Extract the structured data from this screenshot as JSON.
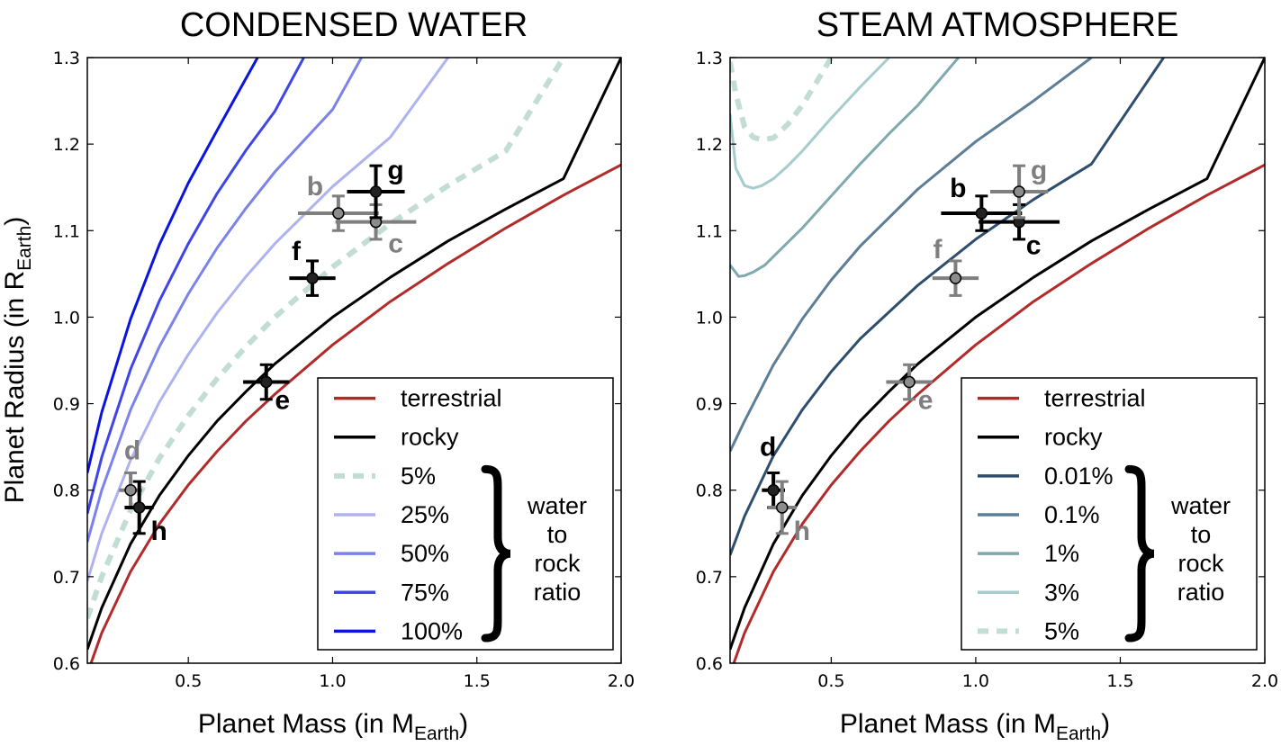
{
  "chart_data": [
    {
      "type": "line",
      "title": "CONDENSED WATER",
      "xlabel": "Planet Mass (in M",
      "xlabel_sub": "Earth",
      "xlabel_close": ")",
      "ylabel": "Planet Radius (in R",
      "ylabel_sub": "Earth",
      "ylabel_close": ")",
      "xlim": [
        0.15,
        2.0
      ],
      "ylim": [
        0.6,
        1.3
      ],
      "xticks": [
        "0.5",
        "1.0",
        "1.5",
        "2.0"
      ],
      "yticks": [
        "0.6",
        "0.7",
        "0.8",
        "0.9",
        "1.0",
        "1.1",
        "1.2",
        "1.3"
      ],
      "grid": false,
      "legend_position": "bottom-right",
      "legend_group_label": [
        "water",
        "to",
        "rock",
        "ratio"
      ],
      "series": [
        {
          "name": "terrestrial",
          "color": "#b22b2b",
          "dash": false,
          "x": [
            0.15,
            0.2,
            0.3,
            0.4,
            0.5,
            0.6,
            0.7,
            0.8,
            1.0,
            1.2,
            1.4,
            1.6,
            1.8,
            2.0
          ],
          "y": [
            0.588,
            0.635,
            0.706,
            0.761,
            0.806,
            0.845,
            0.88,
            0.911,
            0.968,
            1.018,
            1.062,
            1.103,
            1.141,
            1.176
          ]
        },
        {
          "name": "rocky",
          "color": "#000000",
          "dash": false,
          "x": [
            0.15,
            0.2,
            0.3,
            0.4,
            0.5,
            0.6,
            0.7,
            0.8,
            1.0,
            1.2,
            1.4,
            1.6,
            1.8,
            2.0
          ],
          "y": [
            0.616,
            0.664,
            0.738,
            0.794,
            0.84,
            0.88,
            0.914,
            0.946,
            1.0,
            1.046,
            1.088,
            1.125,
            1.16,
            1.3
          ]
        },
        {
          "name": "5%",
          "color": "#c2ddd3",
          "dash": true,
          "x": [
            0.15,
            0.2,
            0.3,
            0.4,
            0.5,
            0.6,
            0.7,
            0.8,
            1.0,
            1.2,
            1.4,
            1.6,
            1.8
          ],
          "y": [
            0.652,
            0.7,
            0.777,
            0.837,
            0.886,
            0.929,
            0.966,
            1.0,
            1.058,
            1.108,
            1.152,
            1.192,
            1.3
          ]
        },
        {
          "name": "25%",
          "color": "#aeb3f0",
          "dash": false,
          "x": [
            0.15,
            0.2,
            0.3,
            0.4,
            0.5,
            0.6,
            0.7,
            0.8,
            1.0,
            1.2,
            1.4
          ],
          "y": [
            0.695,
            0.75,
            0.835,
            0.902,
            0.957,
            1.005,
            1.047,
            1.085,
            1.151,
            1.208,
            1.3
          ]
        },
        {
          "name": "50%",
          "color": "#7b82ea",
          "dash": false,
          "x": [
            0.15,
            0.2,
            0.3,
            0.4,
            0.5,
            0.6,
            0.7,
            0.8,
            1.0,
            1.1
          ],
          "y": [
            0.74,
            0.8,
            0.893,
            0.966,
            1.027,
            1.08,
            1.126,
            1.168,
            1.24,
            1.3
          ]
        },
        {
          "name": "75%",
          "color": "#3f45e6",
          "dash": false,
          "x": [
            0.15,
            0.2,
            0.3,
            0.4,
            0.5,
            0.6,
            0.7,
            0.8,
            0.9
          ],
          "y": [
            0.773,
            0.838,
            0.94,
            1.019,
            1.085,
            1.143,
            1.193,
            1.238,
            1.3
          ]
        },
        {
          "name": "100%",
          "color": "#0a14e0",
          "dash": false,
          "x": [
            0.15,
            0.2,
            0.3,
            0.4,
            0.5,
            0.6,
            0.74
          ],
          "y": [
            0.82,
            0.89,
            0.998,
            1.084,
            1.155,
            1.216,
            1.3
          ]
        }
      ],
      "planets": [
        {
          "label": "b",
          "mass": 1.02,
          "radius": 1.12,
          "xerr": 0.14,
          "yerr": 0.02,
          "highlight": false
        },
        {
          "label": "c",
          "mass": 1.15,
          "radius": 1.11,
          "xerr": 0.14,
          "yerr": 0.02,
          "highlight": false
        },
        {
          "label": "d",
          "mass": 0.3,
          "radius": 0.8,
          "xerr": 0.04,
          "yerr": 0.02,
          "highlight": false
        },
        {
          "label": "e",
          "mass": 0.77,
          "radius": 0.925,
          "xerr": 0.08,
          "yerr": 0.02,
          "highlight": true
        },
        {
          "label": "f",
          "mass": 0.93,
          "radius": 1.045,
          "xerr": 0.08,
          "yerr": 0.02,
          "highlight": true
        },
        {
          "label": "g",
          "mass": 1.15,
          "radius": 1.145,
          "xerr": 0.1,
          "yerr": 0.03,
          "highlight": true
        },
        {
          "label": "h",
          "mass": 0.33,
          "radius": 0.78,
          "xerr": 0.05,
          "yerr": 0.03,
          "highlight": true
        }
      ]
    },
    {
      "type": "line",
      "title": "STEAM ATMOSPHERE",
      "xlabel": "Planet Mass (in M",
      "xlabel_sub": "Earth",
      "xlabel_close": ")",
      "xlim": [
        0.15,
        2.0
      ],
      "ylim": [
        0.6,
        1.3
      ],
      "xticks": [
        "0.5",
        "1.0",
        "1.5",
        "2.0"
      ],
      "yticks": [
        "0.6",
        "0.7",
        "0.8",
        "0.9",
        "1.0",
        "1.1",
        "1.2",
        "1.3"
      ],
      "grid": false,
      "legend_position": "bottom-right",
      "legend_group_label": [
        "water",
        "to",
        "rock",
        "ratio"
      ],
      "series": [
        {
          "name": "terrestrial",
          "color": "#b22b2b",
          "dash": false,
          "x": [
            0.15,
            0.2,
            0.3,
            0.4,
            0.5,
            0.6,
            0.7,
            0.8,
            1.0,
            1.2,
            1.4,
            1.6,
            1.8,
            2.0
          ],
          "y": [
            0.588,
            0.635,
            0.706,
            0.761,
            0.806,
            0.845,
            0.88,
            0.911,
            0.968,
            1.018,
            1.062,
            1.103,
            1.141,
            1.176
          ]
        },
        {
          "name": "rocky",
          "color": "#000000",
          "dash": false,
          "x": [
            0.15,
            0.2,
            0.3,
            0.4,
            0.5,
            0.6,
            0.7,
            0.8,
            1.0,
            1.2,
            1.4,
            1.6,
            1.8,
            2.0
          ],
          "y": [
            0.616,
            0.664,
            0.738,
            0.794,
            0.84,
            0.88,
            0.914,
            0.946,
            1.0,
            1.046,
            1.088,
            1.125,
            1.16,
            1.3
          ]
        },
        {
          "name": "0.01%",
          "color": "#2f4e6e",
          "dash": false,
          "x": [
            0.15,
            0.2,
            0.3,
            0.4,
            0.5,
            0.6,
            0.8,
            1.0,
            1.2,
            1.4,
            1.65
          ],
          "y": [
            0.725,
            0.77,
            0.84,
            0.893,
            0.937,
            0.975,
            1.037,
            1.09,
            1.136,
            1.177,
            1.3
          ]
        },
        {
          "name": "0.1%",
          "color": "#5c7e96",
          "dash": false,
          "x": [
            0.15,
            0.2,
            0.3,
            0.4,
            0.5,
            0.6,
            0.8,
            1.0,
            1.2,
            1.4
          ],
          "y": [
            0.845,
            0.88,
            0.945,
            0.998,
            1.043,
            1.082,
            1.148,
            1.203,
            1.25,
            1.3
          ]
        },
        {
          "name": "1%",
          "color": "#7fa9ae",
          "dash": false,
          "x": [
            0.15,
            0.18,
            0.2,
            0.23,
            0.27,
            0.3,
            0.4,
            0.5,
            0.6,
            0.7,
            0.8,
            0.94
          ],
          "y": [
            1.06,
            1.047,
            1.048,
            1.052,
            1.06,
            1.07,
            1.103,
            1.14,
            1.177,
            1.212,
            1.245,
            1.3
          ]
        },
        {
          "name": "3%",
          "color": "#a6cccb",
          "dash": false,
          "x": [
            0.15,
            0.17,
            0.2,
            0.23,
            0.26,
            0.3,
            0.35,
            0.4,
            0.5,
            0.6,
            0.7
          ],
          "y": [
            1.235,
            1.172,
            1.152,
            1.149,
            1.152,
            1.16,
            1.175,
            1.192,
            1.23,
            1.266,
            1.3
          ]
        },
        {
          "name": "5%",
          "color": "#c2ddd3",
          "dash": true,
          "x": [
            0.15,
            0.17,
            0.2,
            0.23,
            0.26,
            0.3,
            0.35,
            0.4,
            0.45,
            0.5
          ],
          "y": [
            1.295,
            1.258,
            1.22,
            1.208,
            1.205,
            1.207,
            1.223,
            1.245,
            1.272,
            1.3
          ]
        }
      ],
      "planets": [
        {
          "label": "b",
          "mass": 1.02,
          "radius": 1.12,
          "xerr": 0.14,
          "yerr": 0.02,
          "highlight": true
        },
        {
          "label": "c",
          "mass": 1.15,
          "radius": 1.11,
          "xerr": 0.14,
          "yerr": 0.02,
          "highlight": true
        },
        {
          "label": "d",
          "mass": 0.3,
          "radius": 0.8,
          "xerr": 0.04,
          "yerr": 0.02,
          "highlight": true
        },
        {
          "label": "e",
          "mass": 0.77,
          "radius": 0.925,
          "xerr": 0.08,
          "yerr": 0.02,
          "highlight": false
        },
        {
          "label": "f",
          "mass": 0.93,
          "radius": 1.045,
          "xerr": 0.08,
          "yerr": 0.02,
          "highlight": false
        },
        {
          "label": "g",
          "mass": 1.15,
          "radius": 1.145,
          "xerr": 0.1,
          "yerr": 0.03,
          "highlight": false
        },
        {
          "label": "h",
          "mass": 0.33,
          "radius": 0.78,
          "xerr": 0.05,
          "yerr": 0.03,
          "highlight": false
        }
      ]
    }
  ],
  "colors": {
    "highlight": "#000000",
    "muted": "#7f7f7f",
    "marker_fill": "#8c8c8c"
  }
}
